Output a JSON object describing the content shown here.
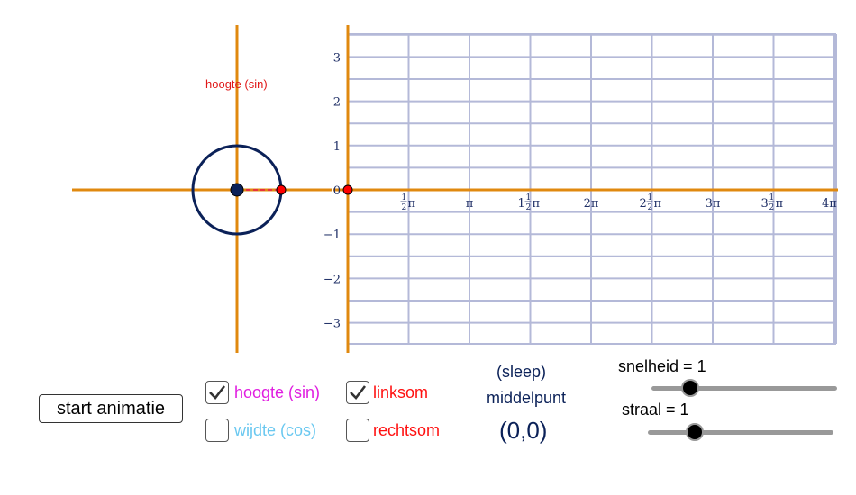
{
  "graph": {
    "y_ticks": [
      "3",
      "2",
      "1",
      "0",
      "−1",
      "−2",
      "−3"
    ],
    "x_ticks": [
      {
        "whole": "",
        "num": "1",
        "den": "2",
        "sym": "π"
      },
      {
        "whole": "",
        "num": "",
        "den": "",
        "sym": "π"
      },
      {
        "whole": "1",
        "num": "1",
        "den": "2",
        "sym": "π"
      },
      {
        "whole": "",
        "num": "",
        "den": "",
        "sym": "2π"
      },
      {
        "whole": "2",
        "num": "1",
        "den": "2",
        "sym": "π"
      },
      {
        "whole": "",
        "num": "",
        "den": "",
        "sym": "3π"
      },
      {
        "whole": "3",
        "num": "1",
        "den": "2",
        "sym": "π"
      },
      {
        "whole": "",
        "num": "",
        "den": "",
        "sym": "4π"
      }
    ],
    "unit_circle_label": "hoogte (sin)",
    "colors": {
      "axis": "#e0890f",
      "grid": "#b4b9d8",
      "circle": "#0b2158",
      "point": "#ff0000",
      "center": "#0b2158",
      "sin_line": "#e8333c"
    }
  },
  "controls": {
    "start_button": "start animatie",
    "checkboxes": [
      {
        "label": "hoogte (sin)",
        "checked": true,
        "color": "#e01ee0"
      },
      {
        "label": "wijdte (cos)",
        "checked": false,
        "color": "#6ac8f0"
      },
      {
        "label": "linksom",
        "checked": true,
        "color": "#ff1010"
      },
      {
        "label": "rechtsom",
        "checked": false,
        "color": "#ff1010"
      }
    ],
    "drag_hint_1": "(sleep)",
    "drag_hint_2": "middelpunt",
    "center_coords": "(0,0)",
    "label_color": "#0b2158",
    "speed_label": "snelheid = 1",
    "speed_value": 1,
    "radius_label": "straal = 1",
    "radius_value": 1
  }
}
